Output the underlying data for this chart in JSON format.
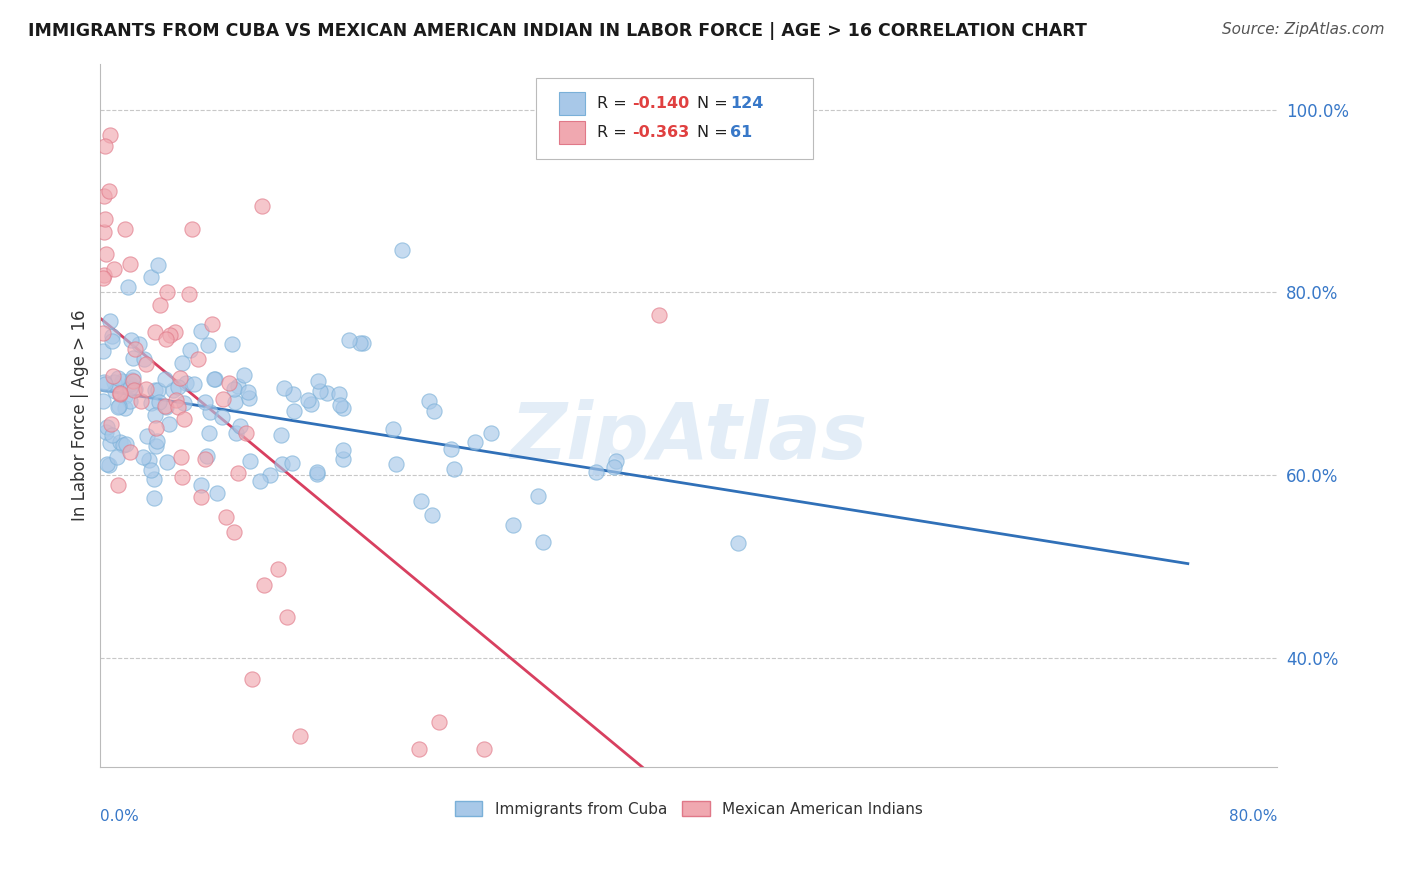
{
  "title": "IMMIGRANTS FROM CUBA VS MEXICAN AMERICAN INDIAN IN LABOR FORCE | AGE > 16 CORRELATION CHART",
  "source": "Source: ZipAtlas.com",
  "ylabel": "In Labor Force | Age > 16",
  "xlim": [
    0.0,
    0.8
  ],
  "ylim": [
    0.28,
    1.05
  ],
  "yticks": [
    0.4,
    0.6,
    0.8,
    1.0
  ],
  "ytick_labels": [
    "40.0%",
    "60.0%",
    "80.0%",
    "100.0%"
  ],
  "series": [
    {
      "name": "Immigrants from Cuba",
      "R": -0.14,
      "N": 124,
      "dot_color": "#a8c8e8",
      "edge_color": "#7ab0d8",
      "trend_color": "#3070b8",
      "trend_solid_end": 0.74
    },
    {
      "name": "Mexican American Indians",
      "R": -0.363,
      "N": 61,
      "dot_color": "#f0a8b0",
      "edge_color": "#e07888",
      "trend_color": "#d84060",
      "trend_solid_end": 0.52,
      "trend_dash_end": 0.8
    }
  ],
  "legend_R_color": "#e04040",
  "legend_N_color": "#3878c8",
  "background_color": "#ffffff",
  "grid_color": "#c8c8c8",
  "watermark_color": "#c8ddf0",
  "watermark_alpha": 0.5
}
